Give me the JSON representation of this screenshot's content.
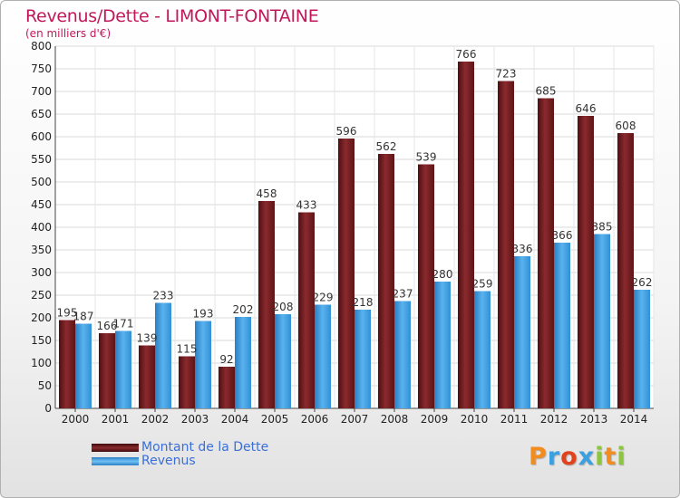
{
  "title": "Revenus/Dette - LIMONT-FONTAINE",
  "subtitle": "(en milliers d'€)",
  "logo_text": "Proxiti",
  "colors": {
    "dette": "#7a1e22",
    "revenus": "#3d9ee2",
    "title": "#c2185b",
    "legend_text": "#3a6fd8"
  },
  "chart_data": {
    "type": "bar",
    "categories": [
      "2000",
      "2001",
      "2002",
      "2003",
      "2004",
      "2005",
      "2006",
      "2007",
      "2008",
      "2009",
      "2010",
      "2011",
      "2012",
      "2013",
      "2014"
    ],
    "series": [
      {
        "name": "Montant de la Dette",
        "values": [
          195,
          166,
          139,
          115,
          92,
          458,
          433,
          596,
          562,
          539,
          766,
          723,
          685,
          646,
          608
        ]
      },
      {
        "name": "Revenus",
        "values": [
          187,
          171,
          233,
          193,
          202,
          208,
          229,
          218,
          237,
          280,
          259,
          336,
          366,
          385,
          262
        ]
      }
    ],
    "ylim": [
      0,
      800
    ],
    "yticks": [
      0,
      50,
      100,
      150,
      200,
      250,
      300,
      350,
      400,
      450,
      500,
      550,
      600,
      650,
      700,
      750,
      800
    ],
    "grid": true,
    "legend_position": "bottom-left"
  }
}
